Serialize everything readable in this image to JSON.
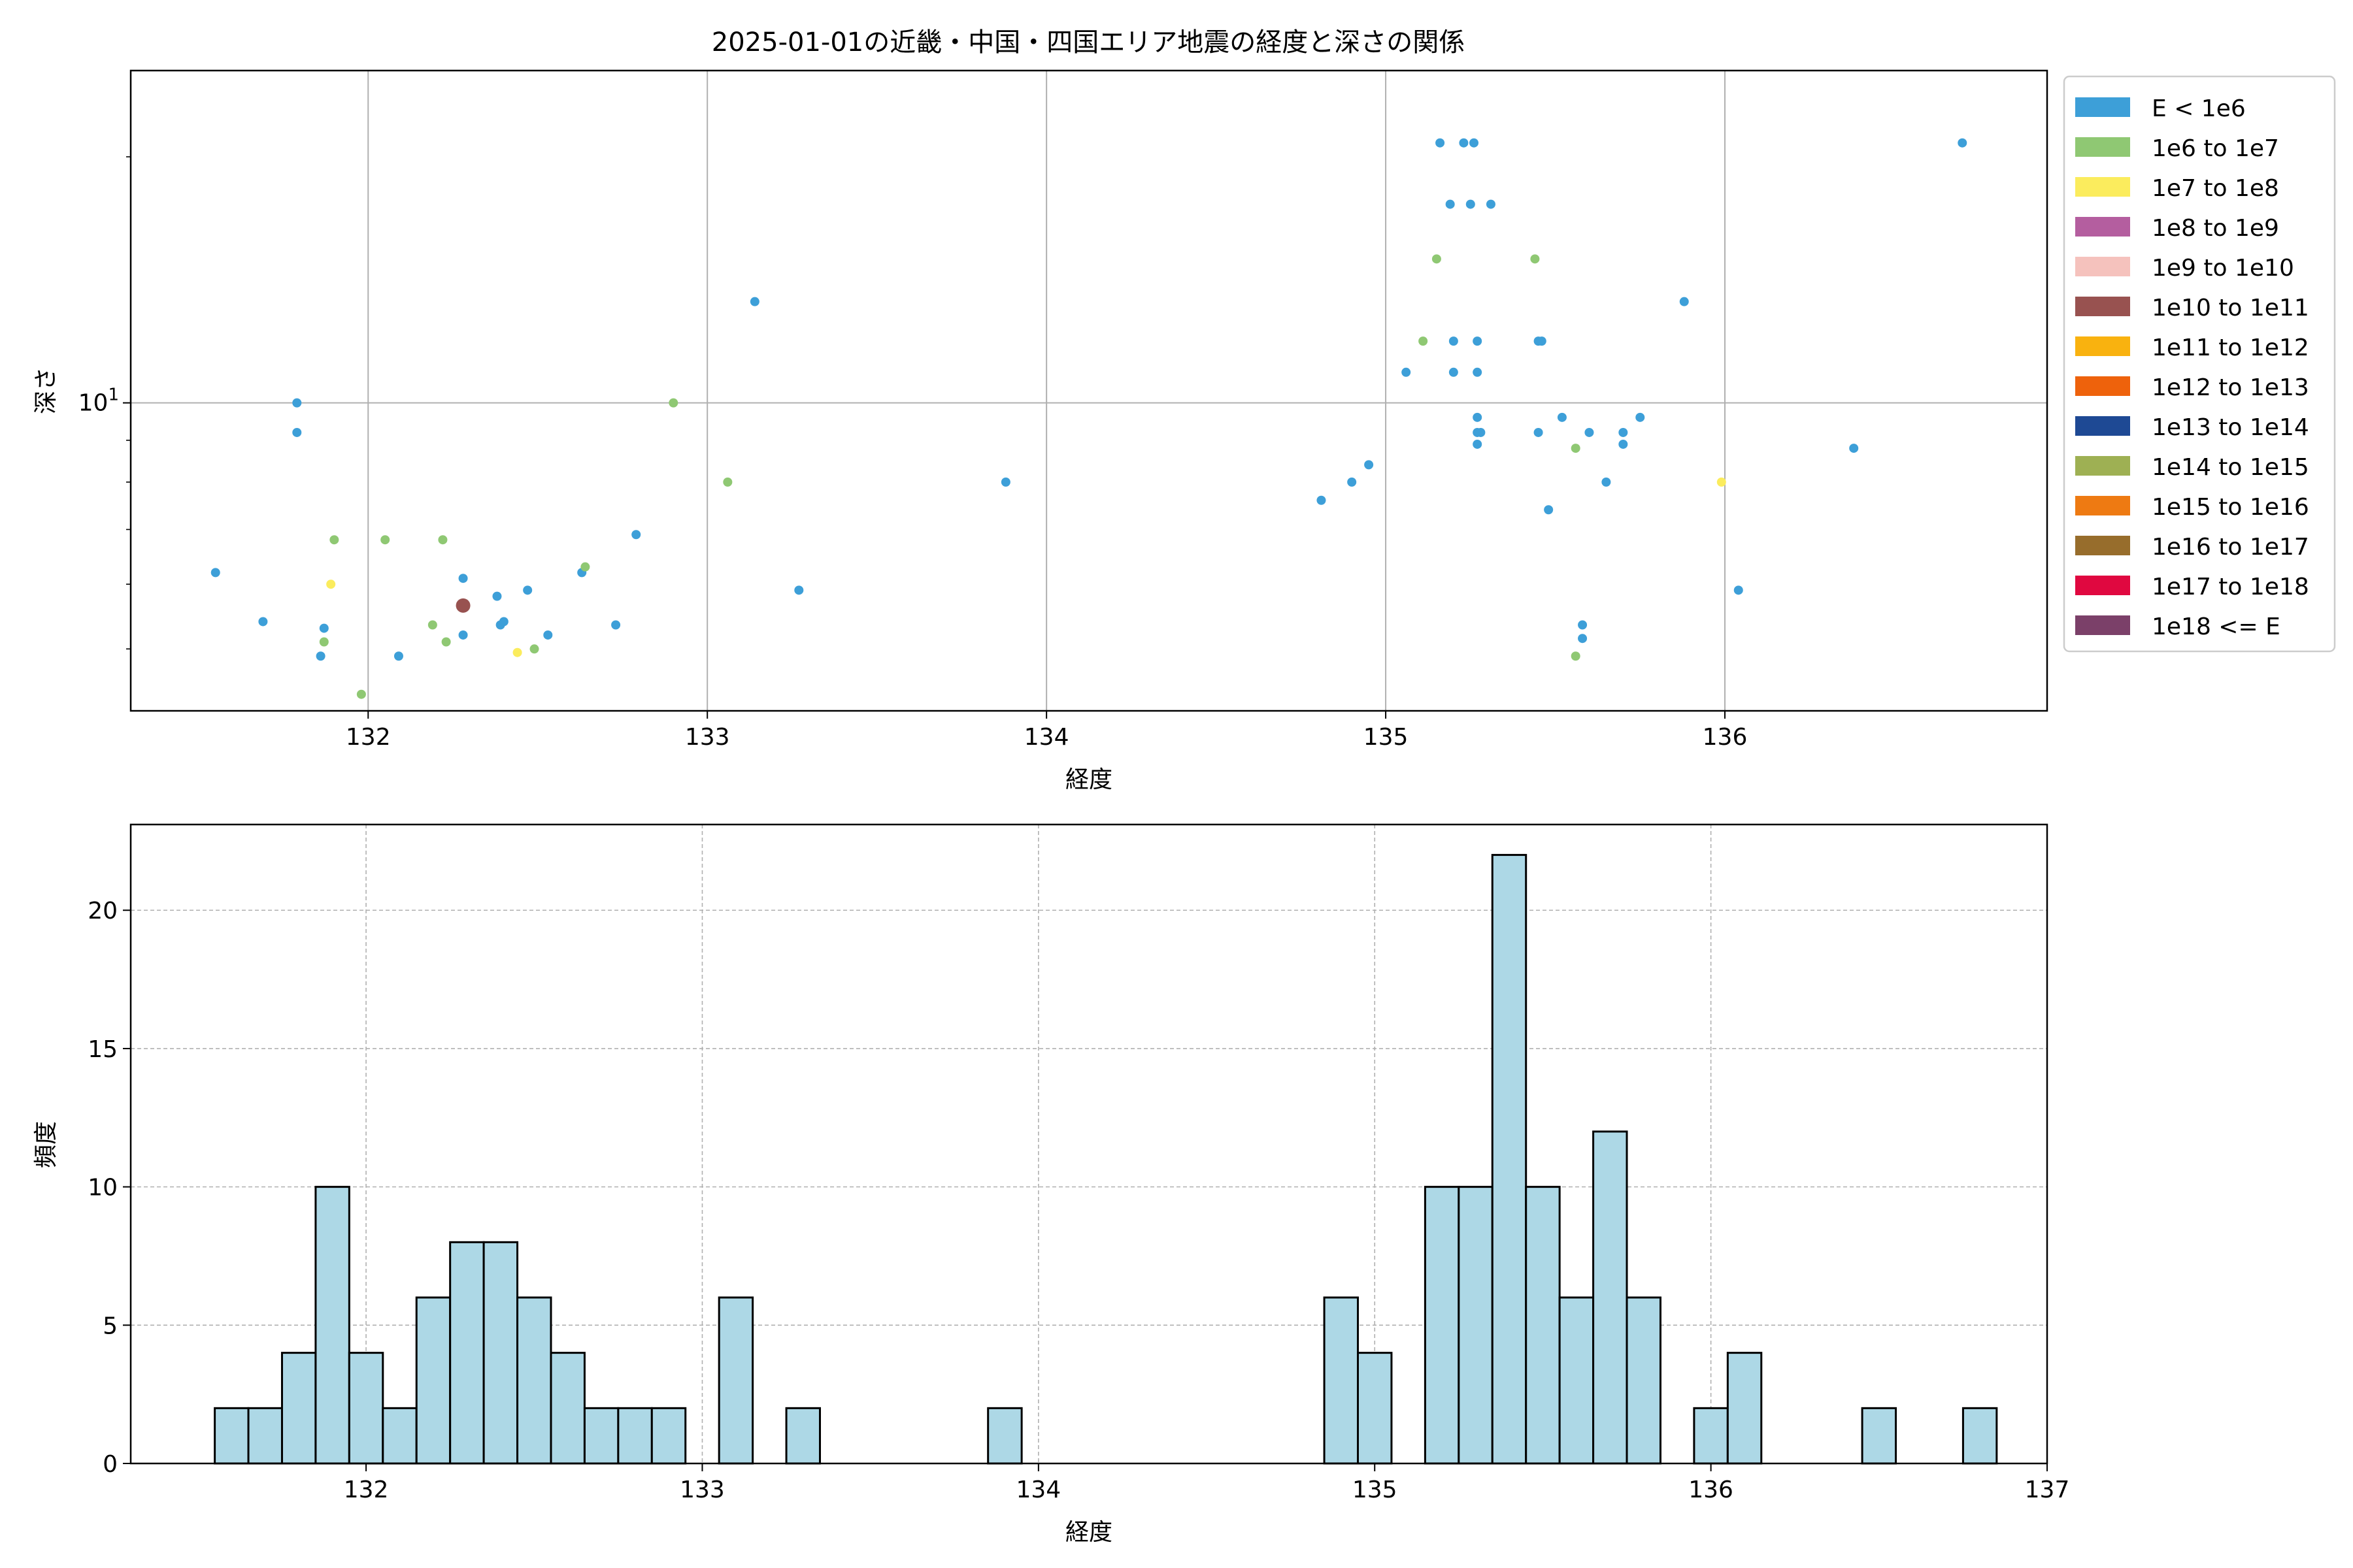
{
  "chart_data": [
    {
      "type": "scatter",
      "title": "2025-01-01の近畿・中国・四国エリア地震の経度と深さの関係",
      "xlabel": "経度",
      "ylabel": "深さ",
      "xlim": [
        131.3,
        136.95
      ],
      "ylim": [
        4.2,
        25.5
      ],
      "yscale": "log",
      "xticks": [
        "132",
        "133",
        "134",
        "135",
        "136"
      ],
      "yticks": [
        {
          "value": 10,
          "label": "10^1"
        }
      ],
      "grid": true,
      "legend_position": "outside-right",
      "legend": [
        {
          "label": "E < 1e6",
          "color": "#3d9fd8"
        },
        {
          "label": "1e6 to 1e7",
          "color": "#8fc873"
        },
        {
          "label": "1e7 to 1e8",
          "color": "#fbec5d"
        },
        {
          "label": "1e8 to 1e9",
          "color": "#b45e9f"
        },
        {
          "label": "1e9 to 1e10",
          "color": "#f5c2bd"
        },
        {
          "label": "1e10 to 1e11",
          "color": "#985250"
        },
        {
          "label": "1e11 to 1e12",
          "color": "#f9b20f"
        },
        {
          "label": "1e12 to 1e13",
          "color": "#ee620c"
        },
        {
          "label": "1e13 to 1e14",
          "color": "#1e4994"
        },
        {
          "label": "1e14 to 1e15",
          "color": "#9eb053"
        },
        {
          "label": "1e15 to 1e16",
          "color": "#ee7a12"
        },
        {
          "label": "1e16 to 1e17",
          "color": "#976d2c"
        },
        {
          "label": "1e17 to 1e18",
          "color": "#e00840"
        },
        {
          "label": "1e18 <= E",
          "color": "#7b4069"
        }
      ],
      "points": [
        {
          "x": 131.55,
          "y": 6.2,
          "c": 0
        },
        {
          "x": 131.69,
          "y": 5.4,
          "c": 0
        },
        {
          "x": 131.79,
          "y": 10,
          "c": 0
        },
        {
          "x": 131.79,
          "y": 9.2,
          "c": 0
        },
        {
          "x": 131.86,
          "y": 4.9,
          "c": 0
        },
        {
          "x": 131.87,
          "y": 5.3,
          "c": 0
        },
        {
          "x": 131.87,
          "y": 5.1,
          "c": 1
        },
        {
          "x": 131.89,
          "y": 6.0,
          "c": 2
        },
        {
          "x": 131.9,
          "y": 6.8,
          "c": 1
        },
        {
          "x": 131.98,
          "y": 4.4,
          "c": 1
        },
        {
          "x": 132.05,
          "y": 6.8,
          "c": 1
        },
        {
          "x": 132.09,
          "y": 4.9,
          "c": 0
        },
        {
          "x": 132.19,
          "y": 5.35,
          "c": 1
        },
        {
          "x": 132.22,
          "y": 6.8,
          "c": 1
        },
        {
          "x": 132.23,
          "y": 5.1,
          "c": 1
        },
        {
          "x": 132.28,
          "y": 6.1,
          "c": 0
        },
        {
          "x": 132.28,
          "y": 5.2,
          "c": 0
        },
        {
          "x": 132.28,
          "y": 5.65,
          "c": 5,
          "big": true
        },
        {
          "x": 132.38,
          "y": 5.8,
          "c": 0
        },
        {
          "x": 132.39,
          "y": 5.35,
          "c": 0
        },
        {
          "x": 132.4,
          "y": 5.4,
          "c": 0
        },
        {
          "x": 132.44,
          "y": 4.95,
          "c": 2
        },
        {
          "x": 132.47,
          "y": 5.9,
          "c": 0
        },
        {
          "x": 132.49,
          "y": 5.0,
          "c": 1
        },
        {
          "x": 132.53,
          "y": 5.2,
          "c": 0
        },
        {
          "x": 132.63,
          "y": 6.2,
          "c": 0
        },
        {
          "x": 132.64,
          "y": 6.3,
          "c": 1
        },
        {
          "x": 132.73,
          "y": 5.35,
          "c": 0
        },
        {
          "x": 132.79,
          "y": 6.9,
          "c": 0
        },
        {
          "x": 132.9,
          "y": 10,
          "c": 1
        },
        {
          "x": 133.06,
          "y": 8.0,
          "c": 1
        },
        {
          "x": 133.14,
          "y": 13.3,
          "c": 0
        },
        {
          "x": 133.27,
          "y": 5.9,
          "c": 0
        },
        {
          "x": 133.88,
          "y": 8.0,
          "c": 0
        },
        {
          "x": 134.81,
          "y": 7.6,
          "c": 0
        },
        {
          "x": 134.9,
          "y": 8.0,
          "c": 0
        },
        {
          "x": 134.95,
          "y": 8.4,
          "c": 0
        },
        {
          "x": 135.06,
          "y": 10.9,
          "c": 0
        },
        {
          "x": 135.11,
          "y": 11.9,
          "c": 1
        },
        {
          "x": 135.15,
          "y": 15.0,
          "c": 1
        },
        {
          "x": 135.16,
          "y": 20.8,
          "c": 0
        },
        {
          "x": 135.19,
          "y": 17.5,
          "c": 0
        },
        {
          "x": 135.2,
          "y": 11.9,
          "c": 0
        },
        {
          "x": 135.2,
          "y": 10.9,
          "c": 0
        },
        {
          "x": 135.23,
          "y": 20.8,
          "c": 0
        },
        {
          "x": 135.25,
          "y": 17.5,
          "c": 0
        },
        {
          "x": 135.26,
          "y": 20.8,
          "c": 0
        },
        {
          "x": 135.27,
          "y": 11.9,
          "c": 0
        },
        {
          "x": 135.27,
          "y": 10.9,
          "c": 0
        },
        {
          "x": 135.27,
          "y": 9.6,
          "c": 0
        },
        {
          "x": 135.27,
          "y": 9.2,
          "c": 0
        },
        {
          "x": 135.27,
          "y": 8.9,
          "c": 0
        },
        {
          "x": 135.28,
          "y": 9.2,
          "c": 0
        },
        {
          "x": 135.31,
          "y": 17.5,
          "c": 0
        },
        {
          "x": 135.44,
          "y": 15.0,
          "c": 1
        },
        {
          "x": 135.45,
          "y": 11.9,
          "c": 0
        },
        {
          "x": 135.45,
          "y": 9.2,
          "c": 0
        },
        {
          "x": 135.46,
          "y": 11.9,
          "c": 0
        },
        {
          "x": 135.48,
          "y": 7.4,
          "c": 0
        },
        {
          "x": 135.52,
          "y": 9.6,
          "c": 0
        },
        {
          "x": 135.56,
          "y": 8.8,
          "c": 1
        },
        {
          "x": 135.56,
          "y": 4.9,
          "c": 1
        },
        {
          "x": 135.58,
          "y": 5.35,
          "c": 0
        },
        {
          "x": 135.58,
          "y": 5.15,
          "c": 0
        },
        {
          "x": 135.6,
          "y": 9.2,
          "c": 0
        },
        {
          "x": 135.65,
          "y": 8.0,
          "c": 0
        },
        {
          "x": 135.7,
          "y": 8.9,
          "c": 0
        },
        {
          "x": 135.7,
          "y": 9.2,
          "c": 0
        },
        {
          "x": 135.75,
          "y": 9.6,
          "c": 0
        },
        {
          "x": 135.88,
          "y": 13.3,
          "c": 0
        },
        {
          "x": 135.99,
          "y": 8.0,
          "c": 2
        },
        {
          "x": 136.04,
          "y": 5.9,
          "c": 0
        },
        {
          "x": 136.38,
          "y": 8.8,
          "c": 0
        },
        {
          "x": 136.7,
          "y": 20.8,
          "c": 0
        }
      ]
    },
    {
      "type": "bar",
      "xlabel": "経度",
      "ylabel": "頻度",
      "xlim": [
        131.3,
        137.0
      ],
      "ylim": [
        0,
        23.1
      ],
      "xticks": [
        "132",
        "133",
        "134",
        "135",
        "136",
        "137"
      ],
      "yticks": [
        "0",
        "5",
        "10",
        "15",
        "20"
      ],
      "grid": true,
      "bar_color": "#add8e6",
      "edge_color": "#000000",
      "bin_start": 131.55,
      "bin_width": 0.1,
      "values": [
        2,
        2,
        4,
        10,
        4,
        2,
        6,
        8,
        8,
        6,
        4,
        2,
        2,
        2,
        0,
        6,
        0,
        2,
        0,
        0,
        0,
        0,
        0,
        2,
        0,
        0,
        0,
        0,
        0,
        0,
        0,
        0,
        0,
        6,
        4,
        0,
        10,
        10,
        22,
        10,
        6,
        12,
        6,
        0,
        2,
        4,
        0,
        0,
        0,
        2,
        0,
        0,
        2
      ]
    }
  ]
}
